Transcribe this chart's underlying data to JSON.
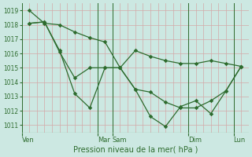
{
  "title": "Pression niveau de la mer( hPa )",
  "bg_color": "#cce8e2",
  "line_color": "#2d6b2d",
  "grid_color": "#d4a8a8",
  "ylim": [
    1010.5,
    1019.5
  ],
  "yticks": [
    1011,
    1012,
    1013,
    1014,
    1015,
    1016,
    1017,
    1018,
    1019
  ],
  "xlim": [
    -0.5,
    14.5
  ],
  "day_tick_positions": [
    0,
    5,
    6,
    11,
    14
  ],
  "day_tick_labels": [
    "Ven",
    "Mar",
    "Sam",
    "Dim",
    "Lun"
  ],
  "n_points": 15,
  "line1_x": [
    0,
    1,
    2,
    3,
    4,
    5,
    6,
    7,
    8,
    9,
    10,
    11,
    12,
    13,
    14
  ],
  "line1_y": [
    1019.0,
    1018.1,
    1018.0,
    1017.5,
    1017.1,
    1016.8,
    1015.0,
    1016.2,
    1015.8,
    1015.5,
    1015.3,
    1015.3,
    1015.5,
    1015.3,
    1015.1
  ],
  "line2_x": [
    0,
    1,
    2,
    3,
    4,
    5,
    6,
    7,
    8,
    9,
    10,
    11,
    12,
    13,
    14
  ],
  "line2_y": [
    1018.1,
    1018.2,
    1016.1,
    1014.3,
    1015.0,
    1015.0,
    1015.0,
    1013.5,
    1013.3,
    1012.6,
    1012.2,
    1012.2,
    1012.7,
    1013.4,
    1015.1
  ],
  "line3_x": [
    0,
    1,
    2,
    3,
    4,
    5,
    6,
    7,
    8,
    9,
    10,
    11,
    12,
    13,
    14
  ],
  "line3_y": [
    1018.1,
    1018.2,
    1016.2,
    1013.2,
    1012.2,
    1015.0,
    1015.0,
    1013.5,
    1011.6,
    1010.9,
    1012.3,
    1012.7,
    1011.8,
    1013.4,
    1015.1
  ]
}
